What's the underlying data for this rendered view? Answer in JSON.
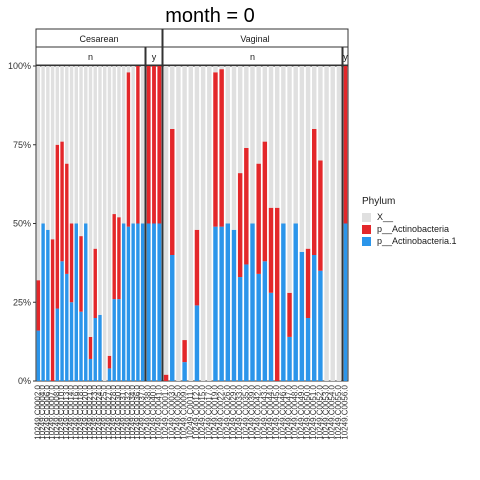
{
  "chart_data": {
    "type": "bar",
    "title": "month = 0",
    "xlabel": "",
    "ylabel": "",
    "ylim": [
      0,
      1
    ],
    "yticks": [
      0,
      0.25,
      0.5,
      0.75,
      1
    ],
    "ytick_labels": [
      "0%",
      "25%",
      "50%",
      "75%",
      "100%"
    ],
    "stacked": true,
    "facet_top": [
      "Cesarean",
      "Vaginal"
    ],
    "facet_sub": [
      "n",
      "y",
      "n",
      "y"
    ],
    "legend": {
      "title": "Phylum",
      "position": "right",
      "entries": [
        {
          "name": "X__",
          "color": "#e0e0e0"
        },
        {
          "name": "p__Actinobacteria",
          "color": "#e3272a"
        },
        {
          "name": "p__Actinobacteria.1",
          "color": "#2b95ea"
        }
      ]
    },
    "panels": [
      {
        "delivery": "Cesarean",
        "group": "n",
        "bars": [
          [
            0.16,
            0.16
          ],
          [
            0.5,
            0.0
          ],
          [
            0.48,
            0.0
          ],
          [
            0.0,
            0.45
          ],
          [
            0.23,
            0.52
          ],
          [
            0.38,
            0.38
          ],
          [
            0.34,
            0.35
          ],
          [
            0.25,
            0.25
          ],
          [
            0.5,
            0.0
          ],
          [
            0.22,
            0.24
          ],
          [
            0.5,
            0.0
          ],
          [
            0.07,
            0.07
          ],
          [
            0.2,
            0.22
          ],
          [
            0.21,
            0.0
          ],
          [
            0.0,
            0.0
          ],
          [
            0.04,
            0.04
          ],
          [
            0.26,
            0.27
          ],
          [
            0.26,
            0.26
          ],
          [
            0.5,
            0.0
          ],
          [
            0.49,
            0.49
          ],
          [
            0.5,
            0.0
          ],
          [
            0.5,
            0.5
          ],
          [
            0.5,
            0.0
          ]
        ]
      },
      {
        "delivery": "Cesarean",
        "group": "y",
        "bars": [
          [
            0.5,
            0.5
          ],
          [
            0.5,
            0.5
          ],
          [
            0.5,
            0.5
          ]
        ]
      },
      {
        "delivery": "Vaginal",
        "group": "n",
        "bars": [
          [
            0.0,
            0.02
          ],
          [
            0.4,
            0.4
          ],
          [
            0.0,
            0.0
          ],
          [
            0.06,
            0.07
          ],
          [
            0.0,
            0.0
          ],
          [
            0.24,
            0.24
          ],
          [
            0.0,
            0.0
          ],
          [
            0.0,
            0.0
          ],
          [
            0.49,
            0.49
          ],
          [
            0.49,
            0.5
          ],
          [
            0.5,
            0.0
          ],
          [
            0.48,
            0.0
          ],
          [
            0.33,
            0.33
          ],
          [
            0.37,
            0.37
          ],
          [
            0.5,
            0.0
          ],
          [
            0.34,
            0.35
          ],
          [
            0.38,
            0.38
          ],
          [
            0.28,
            0.27
          ],
          [
            0.0,
            0.55
          ],
          [
            0.5,
            0.0
          ],
          [
            0.14,
            0.14
          ],
          [
            0.5,
            0.0
          ],
          [
            0.41,
            0.0
          ],
          [
            0.2,
            0.22
          ],
          [
            0.4,
            0.4
          ],
          [
            0.35,
            0.35
          ],
          [
            0.0,
            0.0
          ],
          [
            0.0,
            0.0
          ],
          [
            0.0,
            0.0
          ]
        ]
      },
      {
        "delivery": "Vaginal",
        "group": "y",
        "bars": [
          [
            0.5,
            0.5
          ]
        ]
      }
    ],
    "x_tick_labels": [
      "10249.C0002.0",
      "10249.C0004.0",
      "10249.C0006.0",
      "10249.C0007.0",
      "10249.C0008.0",
      "10249.C0010.0",
      "10249.C0013.0",
      "10249.C0014.0",
      "10249.C0016.0",
      "10249.C0018.0",
      "10249.C0020.0",
      "10249.C0021.0",
      "10249.C0023.0",
      "10249.C0024.0",
      "10249.C0025.0",
      "10249.C0027.0",
      "10249.C0028.0",
      "10249.C0030.0",
      "10249.C0031.0",
      "10249.C0032.0",
      "10249.C0034.0",
      "10249.C0036.0",
      "10249.C0037.0",
      "10249.C0038.0",
      "10249.C0040.0",
      "10249.C0041.0",
      "10249.C0001.0",
      "10249.C0003.0",
      "10249.C0005.0",
      "10249.C0009.0",
      "10249.C0011.0",
      "10249.C0012.0",
      "10249.C0015.0",
      "10249.C0017.0",
      "10249.C0019.0",
      "10249.C0022.0",
      "10249.C0026.0",
      "10249.C0029.0",
      "10249.C0033.0",
      "10249.C0035.0",
      "10249.C0039.0",
      "10249.C0042.0",
      "10249.C0043.0",
      "10249.C0044.0",
      "10249.C0045.0",
      "10249.C0046.0",
      "10249.C0047.0",
      "10249.C0048.0",
      "10249.C0049.0",
      "10249.C0050.0",
      "10249.C0051.0",
      "10249.C0052.0",
      "10249.C0053.0",
      "10249.C0054.0",
      "10249.C0055.0",
      "10249.C0056.0"
    ]
  }
}
